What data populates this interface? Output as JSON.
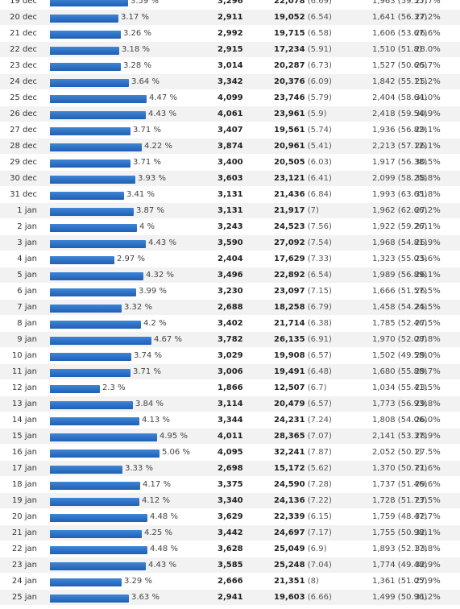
{
  "rows": [
    {
      "date": "19 dec",
      "share": 3.59,
      "pct": "3.59 %",
      "visits": "3,296",
      "views": "22,078",
      "views_ratio": "(6.69)",
      "extra": "1,963 (59.55)",
      "rate": "27.7%"
    },
    {
      "date": "20 dec",
      "share": 3.17,
      "pct": "3.17 %",
      "visits": "2,911",
      "views": "19,052",
      "views_ratio": "(6.54)",
      "extra": "1,641 (56.37)",
      "rate": "27.2%"
    },
    {
      "date": "21 dec",
      "share": 3.26,
      "pct": "3.26 %",
      "visits": "2,992",
      "views": "19,715",
      "views_ratio": "(6.58)",
      "extra": "1,606 (53.67)",
      "rate": "26.6%"
    },
    {
      "date": "22 dec",
      "share": 3.18,
      "pct": "3.18 %",
      "visits": "2,915",
      "views": "17,234",
      "views_ratio": "(5.91)",
      "extra": "1,510 (51.8)",
      "rate": "28.0%"
    },
    {
      "date": "23 dec",
      "share": 3.28,
      "pct": "3.28 %",
      "visits": "3,014",
      "views": "20,287",
      "views_ratio": "(6.73)",
      "extra": "1,527 (50.66)",
      "rate": "25.7%"
    },
    {
      "date": "24 dec",
      "share": 3.64,
      "pct": "3.64 %",
      "visits": "3,342",
      "views": "20,376",
      "views_ratio": "(6.09)",
      "extra": "1,842 (55.11)",
      "rate": "25.2%"
    },
    {
      "date": "25 dec",
      "share": 4.47,
      "pct": "4.47 %",
      "visits": "4,099",
      "views": "23,746",
      "views_ratio": "(5.79)",
      "extra": "2,404 (58.64)",
      "rate": "31.0%"
    },
    {
      "date": "26 dec",
      "share": 4.43,
      "pct": "4.43 %",
      "visits": "4,061",
      "views": "23,961",
      "views_ratio": "(5.9)",
      "extra": "2,418 (59.54)",
      "rate": "30.9%"
    },
    {
      "date": "27 dec",
      "share": 3.71,
      "pct": "3.71 %",
      "visits": "3,407",
      "views": "19,561",
      "views_ratio": "(5.74)",
      "extra": "1,936 (56.82)",
      "rate": "29.1%"
    },
    {
      "date": "28 dec",
      "share": 4.22,
      "pct": "4.22 %",
      "visits": "3,874",
      "views": "20,961",
      "views_ratio": "(5.41)",
      "extra": "2,213 (57.12)",
      "rate": "26.1%"
    },
    {
      "date": "29 dec",
      "share": 3.71,
      "pct": "3.71 %",
      "visits": "3,400",
      "views": "20,505",
      "views_ratio": "(6.03)",
      "extra": "1,917 (56.38)",
      "rate": "30.5%"
    },
    {
      "date": "30 dec",
      "share": 3.93,
      "pct": "3.93 %",
      "visits": "3,603",
      "views": "23,121",
      "views_ratio": "(6.41)",
      "extra": "2,099 (58.25)",
      "rate": "38.8%"
    },
    {
      "date": "31 dec",
      "share": 3.41,
      "pct": "3.41 %",
      "visits": "3,131",
      "views": "21,436",
      "views_ratio": "(6.84)",
      "extra": "1,993 (63.65)",
      "rate": "31.8%"
    },
    {
      "date": "1 jan",
      "share": 3.87,
      "pct": "3.87 %",
      "visits": "3,131",
      "views": "21,917",
      "views_ratio": "(7)",
      "extra": "1,962 (62.66)",
      "rate": "27.2%"
    },
    {
      "date": "2 jan",
      "share": 4.0,
      "pct": "4 %",
      "visits": "3,243",
      "views": "24,523",
      "views_ratio": "(7.56)",
      "extra": "1,922 (59.26)",
      "rate": "27.1%"
    },
    {
      "date": "3 jan",
      "share": 4.43,
      "pct": "4.43 %",
      "visits": "3,590",
      "views": "27,092",
      "views_ratio": "(7.54)",
      "extra": "1,968 (54.81)",
      "rate": "26.9%"
    },
    {
      "date": "4 jan",
      "share": 2.97,
      "pct": "2.97 %",
      "visits": "2,404",
      "views": "17,629",
      "views_ratio": "(7.33)",
      "extra": "1,323 (55.03)",
      "rate": "25.6%"
    },
    {
      "date": "5 jan",
      "share": 4.32,
      "pct": "4.32 %",
      "visits": "3,496",
      "views": "22,892",
      "views_ratio": "(6.54)",
      "extra": "1,989 (56.89)",
      "rate": "26.1%"
    },
    {
      "date": "6 jan",
      "share": 3.99,
      "pct": "3.99 %",
      "visits": "3,230",
      "views": "23,097",
      "views_ratio": "(7.15)",
      "extra": "1,666 (51.57)",
      "rate": "26.5%"
    },
    {
      "date": "7 jan",
      "share": 3.32,
      "pct": "3.32 %",
      "visits": "2,688",
      "views": "18,258",
      "views_ratio": "(6.79)",
      "extra": "1,458 (54.24)",
      "rate": "25.5%"
    },
    {
      "date": "8 jan",
      "share": 4.2,
      "pct": "4.2 %",
      "visits": "3,402",
      "views": "21,714",
      "views_ratio": "(6.38)",
      "extra": "1,785 (52.46)",
      "rate": "27.5%"
    },
    {
      "date": "9 jan",
      "share": 4.67,
      "pct": "4.67 %",
      "visits": "3,782",
      "views": "26,135",
      "views_ratio": "(6.91)",
      "extra": "1,970 (52.08)",
      "rate": "27.8%"
    },
    {
      "date": "10 jan",
      "share": 3.74,
      "pct": "3.74 %",
      "visits": "3,029",
      "views": "19,908",
      "views_ratio": "(6.57)",
      "extra": "1,502 (49.58)",
      "rate": "29.0%"
    },
    {
      "date": "11 jan",
      "share": 3.71,
      "pct": "3.71 %",
      "visits": "3,006",
      "views": "19,491",
      "views_ratio": "(6.48)",
      "extra": "1,680 (55.88)",
      "rate": "29.7%"
    },
    {
      "date": "12 jan",
      "share": 2.3,
      "pct": "2.3 %",
      "visits": "1,866",
      "views": "12,507",
      "views_ratio": "(6.7)",
      "extra": "1,034 (55.41)",
      "rate": "23.5%"
    },
    {
      "date": "13 jan",
      "share": 3.84,
      "pct": "3.84 %",
      "visits": "3,114",
      "views": "20,479",
      "views_ratio": "(6.57)",
      "extra": "1,773 (56.93)",
      "rate": "29.8%"
    },
    {
      "date": "14 jan",
      "share": 4.13,
      "pct": "4.13 %",
      "visits": "3,344",
      "views": "24,231",
      "views_ratio": "(7.24)",
      "extra": "1,808 (54.06)",
      "rate": "26.0%"
    },
    {
      "date": "15 jan",
      "share": 4.95,
      "pct": "4.95 %",
      "visits": "4,011",
      "views": "28,365",
      "views_ratio": "(7.07)",
      "extra": "2,141 (53.37)",
      "rate": "28.9%"
    },
    {
      "date": "16 jan",
      "share": 5.06,
      "pct": "5.06 %",
      "visits": "4,095",
      "views": "32,241",
      "views_ratio": "(7.87)",
      "extra": "2,052 (50.1)",
      "rate": "27.5%"
    },
    {
      "date": "17 jan",
      "share": 3.33,
      "pct": "3.33 %",
      "visits": "2,698",
      "views": "15,172",
      "views_ratio": "(5.62)",
      "extra": "1,370 (50.77)",
      "rate": "21.6%"
    },
    {
      "date": "18 jan",
      "share": 4.17,
      "pct": "4.17 %",
      "visits": "3,375",
      "views": "24,590",
      "views_ratio": "(7.28)",
      "extra": "1,737 (51.46)",
      "rate": "29.6%"
    },
    {
      "date": "19 jan",
      "share": 4.12,
      "pct": "4.12 %",
      "visits": "3,340",
      "views": "24,136",
      "views_ratio": "(7.22)",
      "extra": "1,728 (51.73)",
      "rate": "27.5%"
    },
    {
      "date": "20 jan",
      "share": 4.48,
      "pct": "4.48 %",
      "visits": "3,629",
      "views": "22,339",
      "views_ratio": "(6.15)",
      "extra": "1,759 (48.47)",
      "rate": "32.7%"
    },
    {
      "date": "21 jan",
      "share": 4.25,
      "pct": "4.25 %",
      "visits": "3,442",
      "views": "24,697",
      "views_ratio": "(7.17)",
      "extra": "1,755 (50.98)",
      "rate": "32.1%"
    },
    {
      "date": "22 jan",
      "share": 4.48,
      "pct": "4.48 %",
      "visits": "3,628",
      "views": "25,049",
      "views_ratio": "(6.9)",
      "extra": "1,893 (52.17)",
      "rate": "33.8%"
    },
    {
      "date": "23 jan",
      "share": 4.43,
      "pct": "4.43 %",
      "visits": "3,585",
      "views": "25,248",
      "views_ratio": "(7.04)",
      "extra": "1,774 (49.48)",
      "rate": "32.9%"
    },
    {
      "date": "24 jan",
      "share": 3.29,
      "pct": "3.29 %",
      "visits": "2,666",
      "views": "21,351",
      "views_ratio": "(8)",
      "extra": "1,361 (51.05)",
      "rate": "27.9%"
    },
    {
      "date": "25 jan",
      "share": 3.63,
      "pct": "3.63 %",
      "visits": "2,941",
      "views": "19,603",
      "views_ratio": "(6.66)",
      "extra": "1,499 (50.96)",
      "rate": "31.2%"
    }
  ]
}
